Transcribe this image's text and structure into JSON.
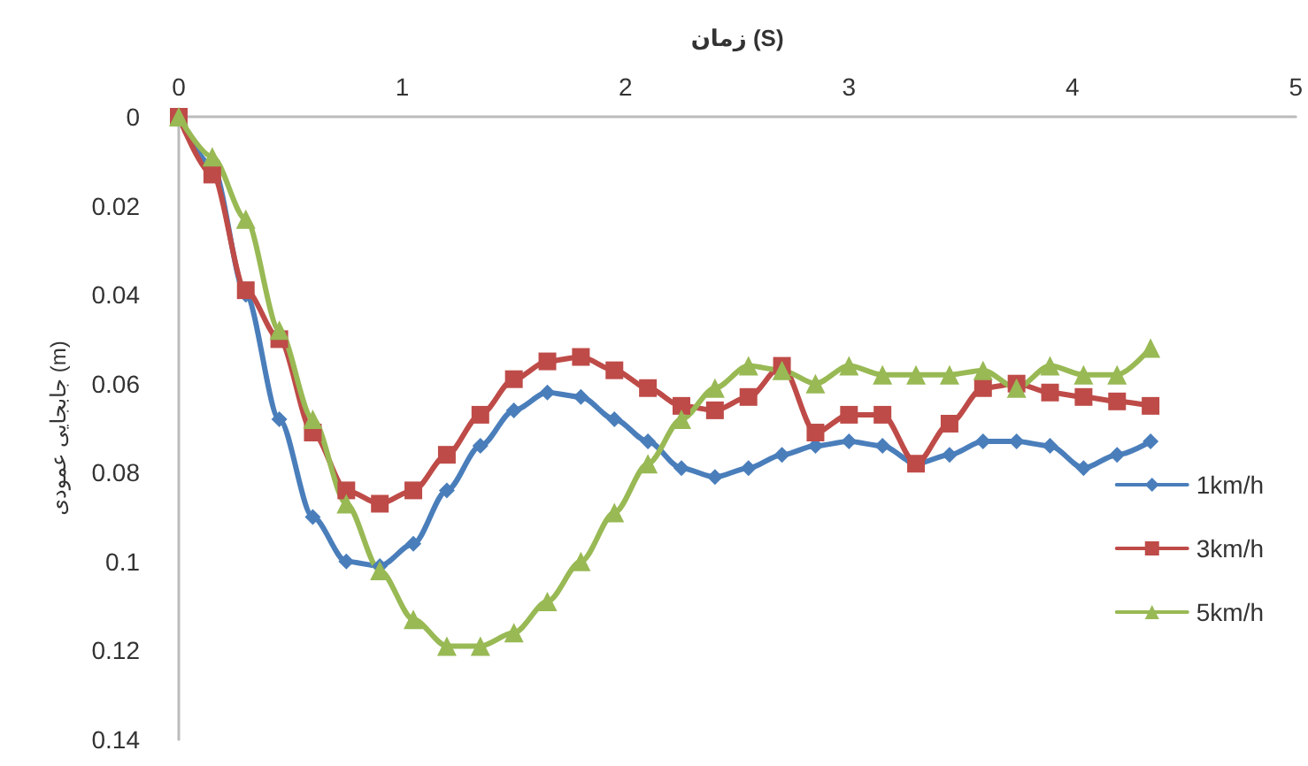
{
  "chart_data": {
    "type": "line",
    "xlabel": "زمان (S)",
    "ylabel": "جابجایی عمودی (m)",
    "x": [
      0,
      0.15,
      0.3,
      0.45,
      0.6,
      0.75,
      0.9,
      1.05,
      1.2,
      1.35,
      1.5,
      1.65,
      1.8,
      1.95,
      2.1,
      2.25,
      2.4,
      2.55,
      2.7,
      2.85,
      3,
      3.15,
      3.3,
      3.45,
      3.6,
      3.75,
      3.9,
      4.05,
      4.2,
      4.35
    ],
    "xlim": [
      0,
      5
    ],
    "xticks": [
      0,
      1,
      2,
      3,
      4,
      5
    ],
    "ylim": [
      0.14,
      0
    ],
    "yticks": [
      0,
      0.02,
      0.04,
      0.06,
      0.08,
      0.1,
      0.12,
      0.14
    ],
    "grid": false,
    "legend": "right",
    "line_style": "solid",
    "series": [
      {
        "name": "1km/h",
        "color": "#4a7ebb",
        "marker": "diamond",
        "values": [
          0,
          0.011,
          0.04,
          0.068,
          0.09,
          0.1,
          0.101,
          0.096,
          0.084,
          0.074,
          0.066,
          0.062,
          0.063,
          0.068,
          0.073,
          0.079,
          0.081,
          0.079,
          0.076,
          0.074,
          0.073,
          0.074,
          0.078,
          0.076,
          0.073,
          0.073,
          0.074,
          0.079,
          0.076,
          0.073
        ]
      },
      {
        "name": "3km/h",
        "color": "#be4b48",
        "marker": "square",
        "values": [
          0,
          0.013,
          0.039,
          0.05,
          0.071,
          0.084,
          0.087,
          0.084,
          0.076,
          0.067,
          0.059,
          0.055,
          0.054,
          0.057,
          0.061,
          0.065,
          0.066,
          0.063,
          0.056,
          0.071,
          0.067,
          0.067,
          0.078,
          0.069,
          0.061,
          0.06,
          0.062,
          0.063,
          0.064,
          0.065
        ]
      },
      {
        "name": "5km/h",
        "color": "#98b954",
        "marker": "triangle",
        "values": [
          0,
          0.009,
          0.023,
          0.048,
          0.068,
          0.087,
          0.102,
          0.113,
          0.119,
          0.119,
          0.116,
          0.109,
          0.1,
          0.089,
          0.078,
          0.068,
          0.061,
          0.056,
          0.057,
          0.06,
          0.056,
          0.058,
          0.058,
          0.058,
          0.057,
          0.061,
          0.056,
          0.058,
          0.058,
          0.052
        ]
      }
    ]
  }
}
